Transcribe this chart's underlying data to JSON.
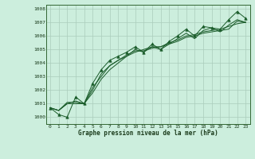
{
  "xlabel": "Graphe pression niveau de la mer (hPa)",
  "bg_color": "#cceedd",
  "grid_color": "#aaccbb",
  "line_color": "#1a5c2a",
  "marker_color": "#1a5c2a",
  "xlim": [
    -0.5,
    23.5
  ],
  "ylim": [
    999.5,
    1008.3
  ],
  "xticks": [
    0,
    1,
    2,
    3,
    4,
    5,
    6,
    7,
    8,
    9,
    10,
    11,
    12,
    13,
    14,
    15,
    16,
    17,
    18,
    19,
    20,
    21,
    22,
    23
  ],
  "yticks": [
    1000,
    1001,
    1002,
    1003,
    1004,
    1005,
    1006,
    1007,
    1008
  ],
  "series": [
    [
      1000.7,
      1000.5,
      1001.1,
      1001.1,
      1001.0,
      1002.0,
      1003.2,
      1003.8,
      1004.2,
      1004.5,
      1005.0,
      1004.8,
      1005.2,
      1005.0,
      1005.4,
      1005.8,
      1006.2,
      1005.8,
      1006.4,
      1006.6,
      1006.3,
      1006.8,
      1007.2,
      1007.0
    ],
    [
      1000.7,
      1000.5,
      1001.0,
      1001.2,
      1001.0,
      1001.8,
      1002.8,
      1003.5,
      1004.0,
      1004.5,
      1004.8,
      1005.0,
      1005.2,
      1005.2,
      1005.5,
      1005.7,
      1006.0,
      1006.1,
      1006.3,
      1006.4,
      1006.5,
      1006.7,
      1006.9,
      1007.0
    ],
    [
      1000.7,
      1000.5,
      1001.0,
      1001.0,
      1001.0,
      1002.2,
      1003.0,
      1003.8,
      1004.2,
      1004.6,
      1004.9,
      1004.9,
      1005.1,
      1005.2,
      1005.4,
      1005.6,
      1005.9,
      1006.0,
      1006.2,
      1006.3,
      1006.4,
      1006.5,
      1007.1,
      1007.0
    ],
    [
      1000.7,
      1000.2,
      1000.0,
      1001.5,
      1001.0,
      1002.5,
      1003.5,
      1004.2,
      1004.5,
      1004.8,
      1005.2,
      1004.8,
      1005.4,
      1005.0,
      1005.6,
      1006.0,
      1006.5,
      1006.0,
      1006.7,
      1006.6,
      1006.5,
      1007.2,
      1007.8,
      1007.3
    ]
  ],
  "series_with_markers": [
    3
  ]
}
